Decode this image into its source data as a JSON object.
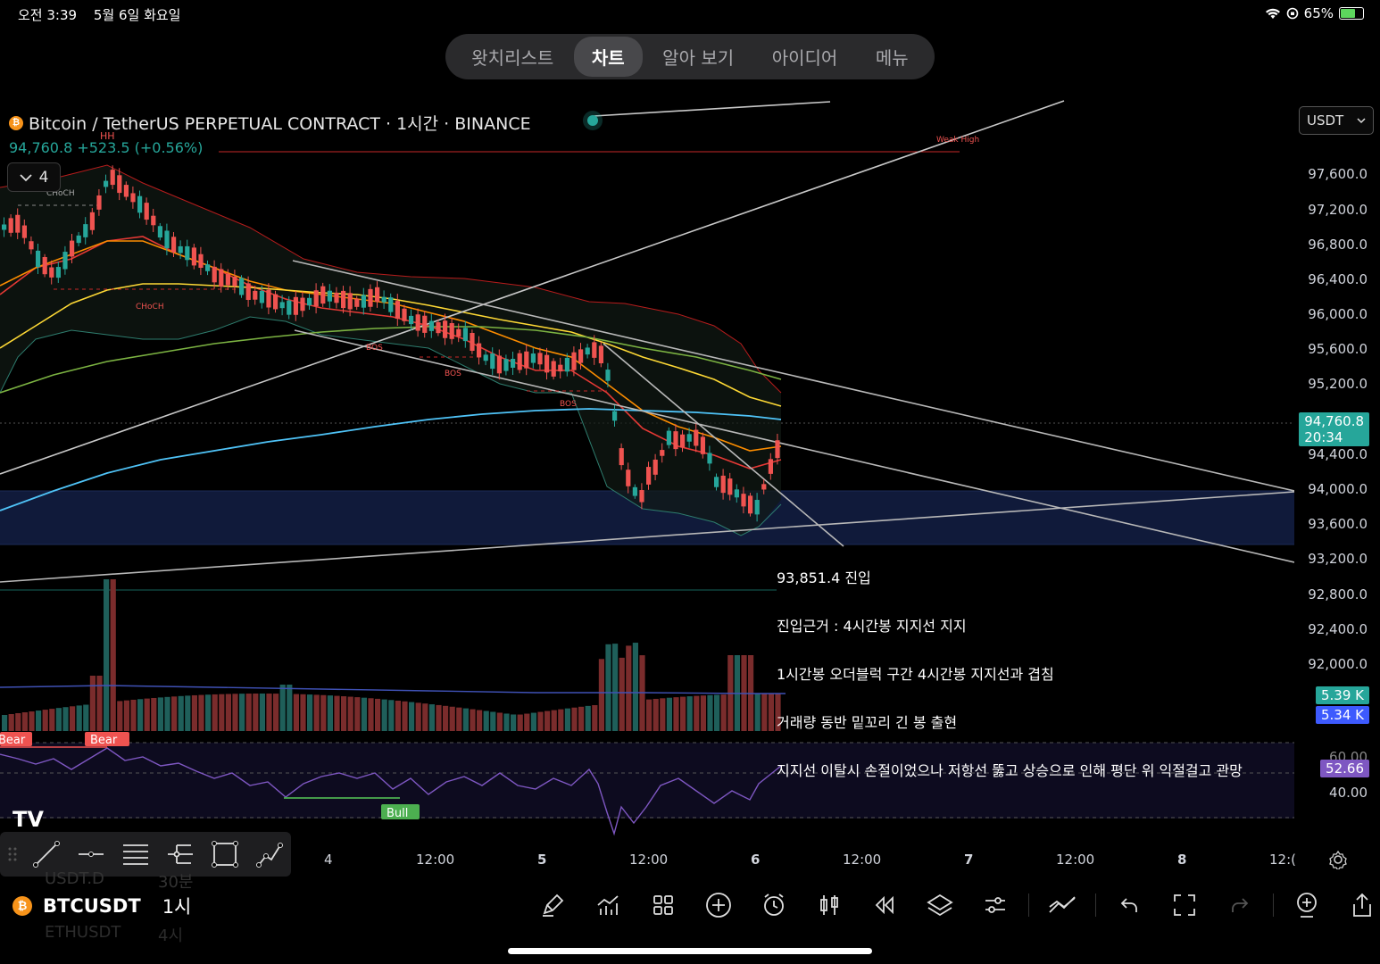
{
  "status_bar": {
    "time": "오전 3:39",
    "date": "5월 6일 화요일",
    "battery_percent": "65%"
  },
  "tabs": [
    {
      "label": "왓치리스트",
      "active": false
    },
    {
      "label": "차트",
      "active": true
    },
    {
      "label": "알아 보기",
      "active": false
    },
    {
      "label": "아이디어",
      "active": false
    },
    {
      "label": "메뉴",
      "active": false
    }
  ],
  "chart": {
    "title": "Bitcoin / TetherUS PERPETUAL CONTRACT · 1시간 · BINANCE",
    "last_price": "94,760.8",
    "change": "+523.5 (+0.56%)",
    "indicator_count": "4",
    "currency": "USDT",
    "price_ticks": [
      "97,600.0",
      "97,200.0",
      "96,800.0",
      "96,400.0",
      "96,000.0",
      "95,600.0",
      "95,200.0",
      "94,400.0",
      "94,000.0",
      "93,600.0",
      "93,200.0",
      "92,800.0",
      "92,400.0",
      "92,000.0"
    ],
    "price_tag": "94,760.8",
    "countdown": "20:34",
    "volume_tag_1": "5.39 K",
    "volume_tag_2": "5.34 K",
    "rsi_value": "52.66",
    "rsi_ticks": [
      "60.00",
      "40.00"
    ],
    "time_ticks": [
      "4",
      "12:00",
      "5",
      "12:00",
      "6",
      "12:00",
      "7",
      "12:00",
      "8",
      "12:("
    ],
    "markers": {
      "hh": "HH",
      "choch_top": "CHoCH",
      "choch_mid": "CHoCH",
      "bos1": "BOS",
      "bos2": "BOS",
      "bos3": "BOS",
      "weak_high": "Weak High",
      "bear1": "Bear",
      "bear2": "Bear",
      "bull": "Bull"
    },
    "colors": {
      "up": "#26a69a",
      "down": "#ef5350",
      "ob_zone": "#101a3a"
    }
  },
  "annotation": {
    "line1": "93,851.4 진입",
    "line2": "진입근거 : 4시간봉 지지선 지지",
    "line3": "1시간봉 오더블럭 구간 4시간봉 지지선과 겹침",
    "line4": "거래량 동반 밑꼬리 긴 봉 출현",
    "line5": "지지선 이탈시 손절이었으나 저항선 뚫고 상승으로 인해 평단 위 익절걸고 관망"
  },
  "symbols": {
    "current": "BTCUSDT",
    "current_interval": "1시",
    "prev": "USDT.D",
    "prev_interval": "30분",
    "next": "ETHUSDT",
    "next_interval": "4시"
  },
  "bottom_toolbar_icons": [
    "pencil-icon",
    "indicators-icon",
    "grid-icon",
    "add-icon",
    "alarm-icon",
    "bar-type-icon",
    "replay-icon",
    "layers-icon",
    "settings-icon",
    "trend-icon",
    "undo-icon",
    "fullscreen-icon",
    "redo-icon",
    "add-watch-icon",
    "share-icon"
  ]
}
